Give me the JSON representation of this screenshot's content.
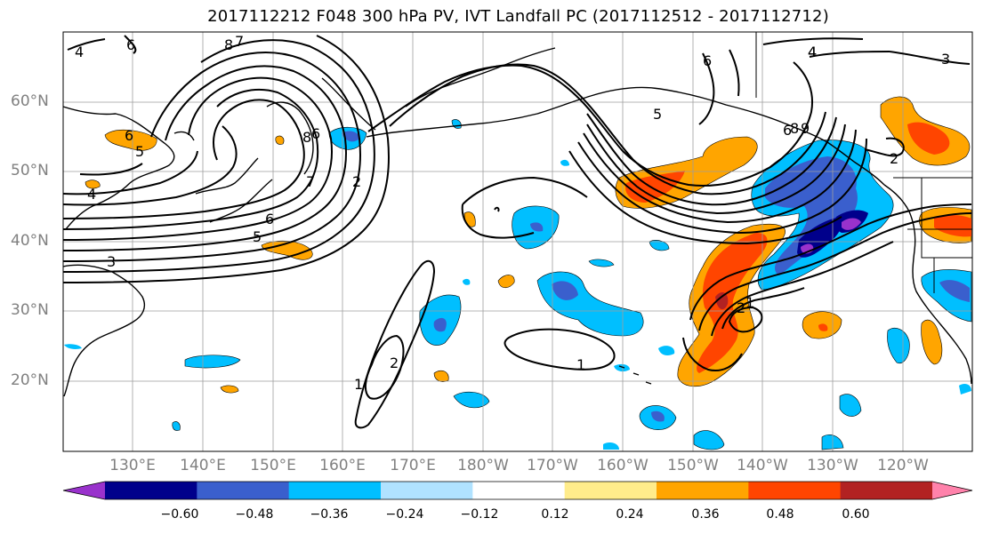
{
  "title": "2017112212 F048 300 hPa PV, IVT Landfall PC (2017112512 - 2017112712)",
  "lat_labels": [
    "60°N",
    "50°N",
    "40°N",
    "30°N",
    "20°N"
  ],
  "lon_labels": [
    "130°E",
    "140°E",
    "150°E",
    "160°E",
    "170°E",
    "180°W",
    "170°W",
    "160°W",
    "150°W",
    "140°W",
    "130°W",
    "120°W"
  ],
  "contour_labels": [
    "4",
    "6",
    "8",
    "7",
    "6",
    "5",
    "6",
    "5",
    "4",
    "3",
    "8",
    "6",
    "7",
    "2",
    "6",
    "5",
    "4",
    "6",
    "8",
    "9",
    "4",
    "3",
    "2",
    "1",
    "2",
    "1",
    "2",
    "1"
  ],
  "colorbar": {
    "ticks": [
      "−0.60",
      "−0.48",
      "−0.36",
      "−0.24",
      "−0.12",
      "0.12",
      "0.24",
      "0.36",
      "0.48",
      "0.60"
    ],
    "colors": [
      "#9932cc",
      "#00008b",
      "#3a5fcd",
      "#00bfff",
      "#b0e2ff",
      "#ffffff",
      "#ffec8b",
      "#ffa500",
      "#ff4500",
      "#b22222",
      "#ff82ab"
    ]
  },
  "map_features": {
    "domain": "North Pacific",
    "fields": [
      "300 hPa PV (black contours)",
      "IVT Landfall PC (color fill)"
    ],
    "lat_range": [
      10,
      70
    ],
    "lon_range": [
      "120°E",
      "110°W"
    ],
    "gridlines": true
  }
}
